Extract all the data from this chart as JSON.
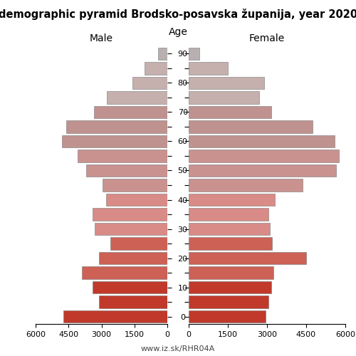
{
  "title": "demographic pyramid Brodsko-posavska županija, year 2020",
  "footer": "www.iz.sk/RHR04A",
  "male": [
    4750,
    3100,
    3400,
    3900,
    3100,
    2600,
    3300,
    3400,
    2800,
    2950,
    3700,
    4100,
    4800,
    4600,
    3350,
    2750,
    1600,
    1050,
    420
  ],
  "female": [
    2950,
    3050,
    3150,
    3250,
    4500,
    3200,
    3100,
    3050,
    3300,
    4350,
    5650,
    5750,
    5600,
    4750,
    3150,
    2700,
    2900,
    1500,
    420
  ],
  "n_groups": 19,
  "age_step": 5,
  "xlim": 6000,
  "xticks": [
    0,
    1500,
    3000,
    4500,
    6000
  ],
  "bar_height": 0.85,
  "background_color": "#ffffff",
  "colors": [
    "#c0392b",
    "#c0392b",
    "#c0392b",
    "#cd6155",
    "#cd6155",
    "#cd6155",
    "#d98b87",
    "#d98b87",
    "#d98b87",
    "#c9928f",
    "#c9928f",
    "#c9928f",
    "#c0928f",
    "#c0928f",
    "#c0928f",
    "#c5b0ae",
    "#c5b0ae",
    "#c5b0ae",
    "#b8b0b0"
  ]
}
